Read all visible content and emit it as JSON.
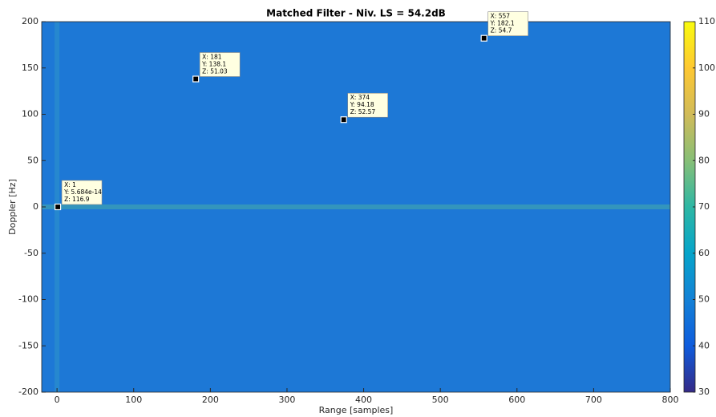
{
  "chart_data": {
    "type": "heatmap",
    "title": "Matched Filter - Niv. LS = 54.2dB",
    "x_label": "Range [samples]",
    "y_label": "Doppler [Hz]",
    "xlim": [
      -20,
      800
    ],
    "xticks": [
      0,
      100,
      200,
      300,
      400,
      500,
      600,
      700,
      800
    ],
    "ylim": [
      -200,
      200
    ],
    "yticks": [
      -200,
      -150,
      -100,
      -50,
      0,
      50,
      100,
      150,
      200
    ],
    "colorbar": {
      "lim": [
        30,
        110
      ],
      "ticks": [
        30,
        40,
        50,
        60,
        70,
        80,
        90,
        100,
        110
      ],
      "colormap": [
        "#352a87",
        "#0f5cdd",
        "#1481d6",
        "#06a4ca",
        "#2eb7a4",
        "#87bf77",
        "#d1bb59",
        "#fec832",
        "#f9fb0e"
      ]
    },
    "datatips": [
      {
        "x": 1,
        "y": 5.684e-14,
        "z": 116.9,
        "x_label": "X: 1",
        "y_label": "Y: 5.684e-14",
        "z_label": "Z: 116.9"
      },
      {
        "x": 181,
        "y": 138.1,
        "z": 51.03,
        "x_label": "X: 181",
        "y_label": "Y: 138.1",
        "z_label": "Z: 51.03"
      },
      {
        "x": 374,
        "y": 94.18,
        "z": 52.57,
        "x_label": "X: 374",
        "y_label": "Y: 94.18",
        "z_label": "Z: 52.57"
      },
      {
        "x": 557,
        "y": 182.1,
        "z": 54.7,
        "x_label": "X: 557",
        "y_label": "Y: 182.1",
        "z_label": "Z: 54.7"
      }
    ]
  }
}
